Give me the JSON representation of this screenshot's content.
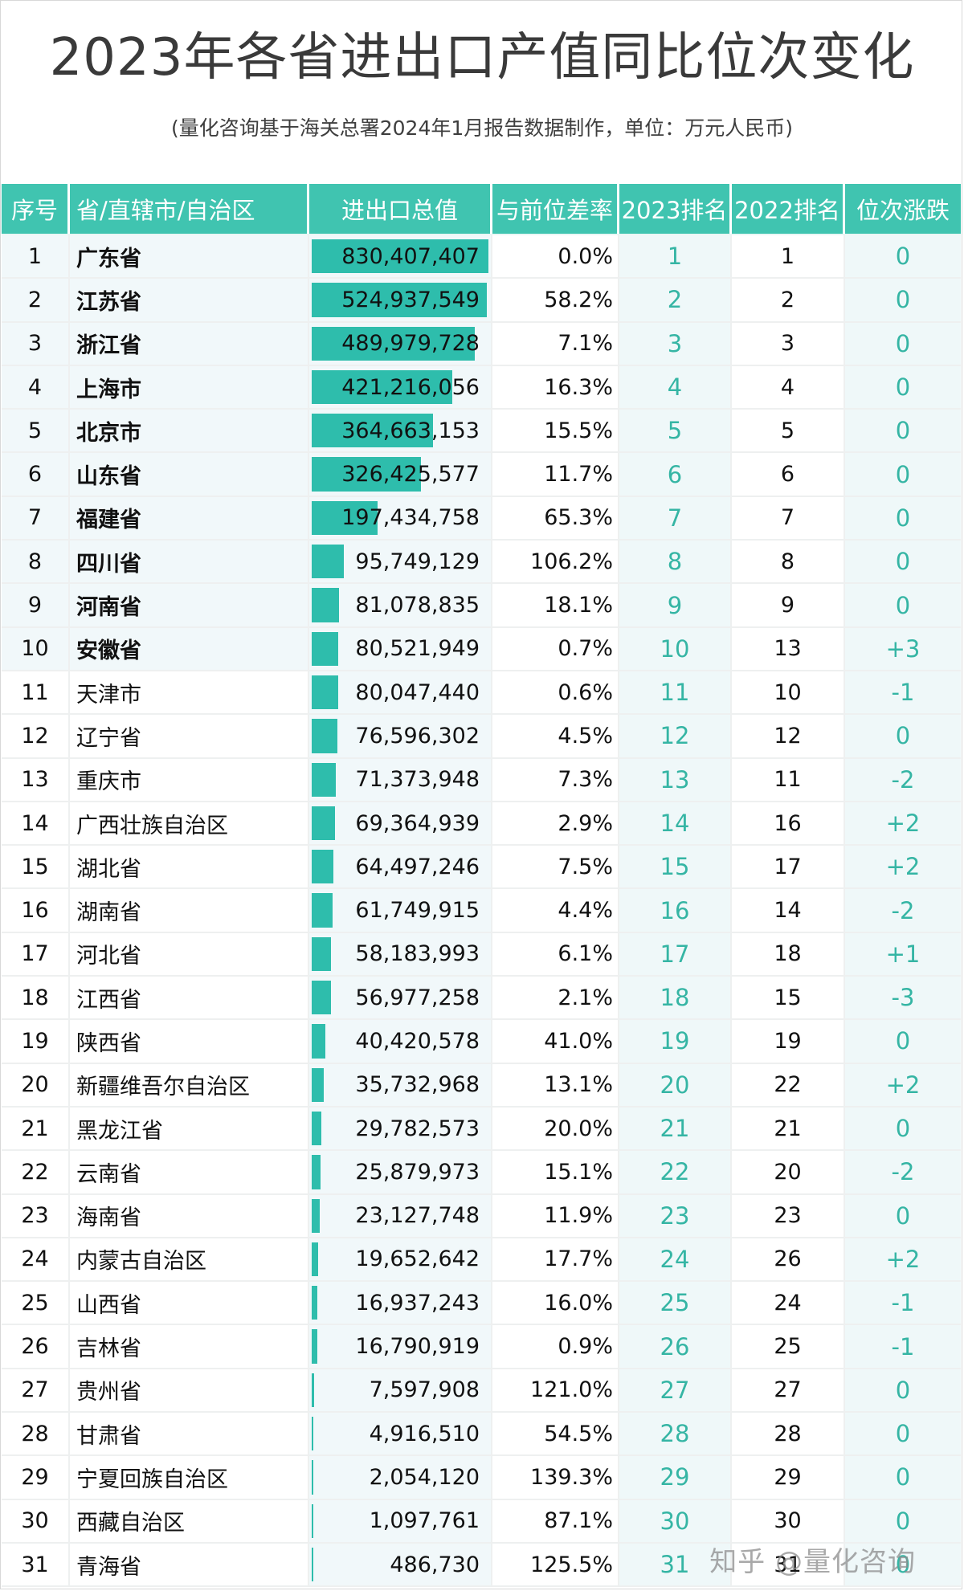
{
  "title": "2023年各省进出口产值同比位次变化",
  "subtitle": "(量化咨询基于海关总署2024年1月报告数据制作，单位：万元人民币)",
  "colors": {
    "header_bg": "#40c4b0",
    "bar": "#2ebdac",
    "rank_text": "#35b5a4"
  },
  "table": {
    "headers": [
      "序号",
      "省/直辖市/自治区",
      "进出口总值",
      "与前位差率",
      "2023排名",
      "2022排名",
      "位次涨跌"
    ]
  },
  "watermark": "知乎 @量化咨询",
  "chart_data": {
    "type": "table",
    "title": "2023年各省进出口产值同比位次变化",
    "subtitle": "(量化咨询基于海关总署2024年1月报告数据制作，单位：万元人民币)",
    "columns": [
      "序号",
      "省/直辖市/自治区",
      "进出口总值",
      "与前位差率",
      "2023排名",
      "2022排名",
      "位次涨跌"
    ],
    "bar_scale_max": 530000000,
    "rows": [
      {
        "idx": "1",
        "name": "广东省",
        "value": 830407407,
        "value_text": "830,407,407",
        "rate": "0.0%",
        "rank2023": "1",
        "rank2022": "1",
        "change": "0"
      },
      {
        "idx": "2",
        "name": "江苏省",
        "value": 524937549,
        "value_text": "524,937,549",
        "rate": "58.2%",
        "rank2023": "2",
        "rank2022": "2",
        "change": "0"
      },
      {
        "idx": "3",
        "name": "浙江省",
        "value": 489979728,
        "value_text": "489,979,728",
        "rate": "7.1%",
        "rank2023": "3",
        "rank2022": "3",
        "change": "0"
      },
      {
        "idx": "4",
        "name": "上海市",
        "value": 421216056,
        "value_text": "421,216,056",
        "rate": "16.3%",
        "rank2023": "4",
        "rank2022": "4",
        "change": "0"
      },
      {
        "idx": "5",
        "name": "北京市",
        "value": 364663153,
        "value_text": "364,663,153",
        "rate": "15.5%",
        "rank2023": "5",
        "rank2022": "5",
        "change": "0"
      },
      {
        "idx": "6",
        "name": "山东省",
        "value": 326425577,
        "value_text": "326,425,577",
        "rate": "11.7%",
        "rank2023": "6",
        "rank2022": "6",
        "change": "0"
      },
      {
        "idx": "7",
        "name": "福建省",
        "value": 197434758,
        "value_text": "197,434,758",
        "rate": "65.3%",
        "rank2023": "7",
        "rank2022": "7",
        "change": "0"
      },
      {
        "idx": "8",
        "name": "四川省",
        "value": 95749129,
        "value_text": "95,749,129",
        "rate": "106.2%",
        "rank2023": "8",
        "rank2022": "8",
        "change": "0"
      },
      {
        "idx": "9",
        "name": "河南省",
        "value": 81078835,
        "value_text": "81,078,835",
        "rate": "18.1%",
        "rank2023": "9",
        "rank2022": "9",
        "change": "0"
      },
      {
        "idx": "10",
        "name": "安徽省",
        "value": 80521949,
        "value_text": "80,521,949",
        "rate": "0.7%",
        "rank2023": "10",
        "rank2022": "13",
        "change": "+3"
      },
      {
        "idx": "11",
        "name": "天津市",
        "value": 80047440,
        "value_text": "80,047,440",
        "rate": "0.6%",
        "rank2023": "11",
        "rank2022": "10",
        "change": "-1"
      },
      {
        "idx": "12",
        "name": "辽宁省",
        "value": 76596302,
        "value_text": "76,596,302",
        "rate": "4.5%",
        "rank2023": "12",
        "rank2022": "12",
        "change": "0"
      },
      {
        "idx": "13",
        "name": "重庆市",
        "value": 71373948,
        "value_text": "71,373,948",
        "rate": "7.3%",
        "rank2023": "13",
        "rank2022": "11",
        "change": "-2"
      },
      {
        "idx": "14",
        "name": "广西壮族自治区",
        "value": 69364939,
        "value_text": "69,364,939",
        "rate": "2.9%",
        "rank2023": "14",
        "rank2022": "16",
        "change": "+2"
      },
      {
        "idx": "15",
        "name": "湖北省",
        "value": 64497246,
        "value_text": "64,497,246",
        "rate": "7.5%",
        "rank2023": "15",
        "rank2022": "17",
        "change": "+2"
      },
      {
        "idx": "16",
        "name": "湖南省",
        "value": 61749915,
        "value_text": "61,749,915",
        "rate": "4.4%",
        "rank2023": "16",
        "rank2022": "14",
        "change": "-2"
      },
      {
        "idx": "17",
        "name": "河北省",
        "value": 58183993,
        "value_text": "58,183,993",
        "rate": "6.1%",
        "rank2023": "17",
        "rank2022": "18",
        "change": "+1"
      },
      {
        "idx": "18",
        "name": "江西省",
        "value": 56977258,
        "value_text": "56,977,258",
        "rate": "2.1%",
        "rank2023": "18",
        "rank2022": "15",
        "change": "-3"
      },
      {
        "idx": "19",
        "name": "陕西省",
        "value": 40420578,
        "value_text": "40,420,578",
        "rate": "41.0%",
        "rank2023": "19",
        "rank2022": "19",
        "change": "0"
      },
      {
        "idx": "20",
        "name": "新疆维吾尔自治区",
        "value": 35732968,
        "value_text": "35,732,968",
        "rate": "13.1%",
        "rank2023": "20",
        "rank2022": "22",
        "change": "+2"
      },
      {
        "idx": "21",
        "name": "黑龙江省",
        "value": 29782573,
        "value_text": "29,782,573",
        "rate": "20.0%",
        "rank2023": "21",
        "rank2022": "21",
        "change": "0"
      },
      {
        "idx": "22",
        "name": "云南省",
        "value": 25879973,
        "value_text": "25,879,973",
        "rate": "15.1%",
        "rank2023": "22",
        "rank2022": "20",
        "change": "-2"
      },
      {
        "idx": "23",
        "name": "海南省",
        "value": 23127748,
        "value_text": "23,127,748",
        "rate": "11.9%",
        "rank2023": "23",
        "rank2022": "23",
        "change": "0"
      },
      {
        "idx": "24",
        "name": "内蒙古自治区",
        "value": 19652642,
        "value_text": "19,652,642",
        "rate": "17.7%",
        "rank2023": "24",
        "rank2022": "26",
        "change": "+2"
      },
      {
        "idx": "25",
        "name": "山西省",
        "value": 16937243,
        "value_text": "16,937,243",
        "rate": "16.0%",
        "rank2023": "25",
        "rank2022": "24",
        "change": "-1"
      },
      {
        "idx": "26",
        "name": "吉林省",
        "value": 16790919,
        "value_text": "16,790,919",
        "rate": "0.9%",
        "rank2023": "26",
        "rank2022": "25",
        "change": "-1"
      },
      {
        "idx": "27",
        "name": "贵州省",
        "value": 7597908,
        "value_text": "7,597,908",
        "rate": "121.0%",
        "rank2023": "27",
        "rank2022": "27",
        "change": "0"
      },
      {
        "idx": "28",
        "name": "甘肃省",
        "value": 4916510,
        "value_text": "4,916,510",
        "rate": "54.5%",
        "rank2023": "28",
        "rank2022": "28",
        "change": "0"
      },
      {
        "idx": "29",
        "name": "宁夏回族自治区",
        "value": 2054120,
        "value_text": "2,054,120",
        "rate": "139.3%",
        "rank2023": "29",
        "rank2022": "29",
        "change": "0"
      },
      {
        "idx": "30",
        "name": "西藏自治区",
        "value": 1097761,
        "value_text": "1,097,761",
        "rate": "87.1%",
        "rank2023": "30",
        "rank2022": "30",
        "change": "0"
      },
      {
        "idx": "31",
        "name": "青海省",
        "value": 486730,
        "value_text": "486,730",
        "rate": "125.5%",
        "rank2023": "31",
        "rank2022": "31",
        "change": "0"
      }
    ]
  }
}
